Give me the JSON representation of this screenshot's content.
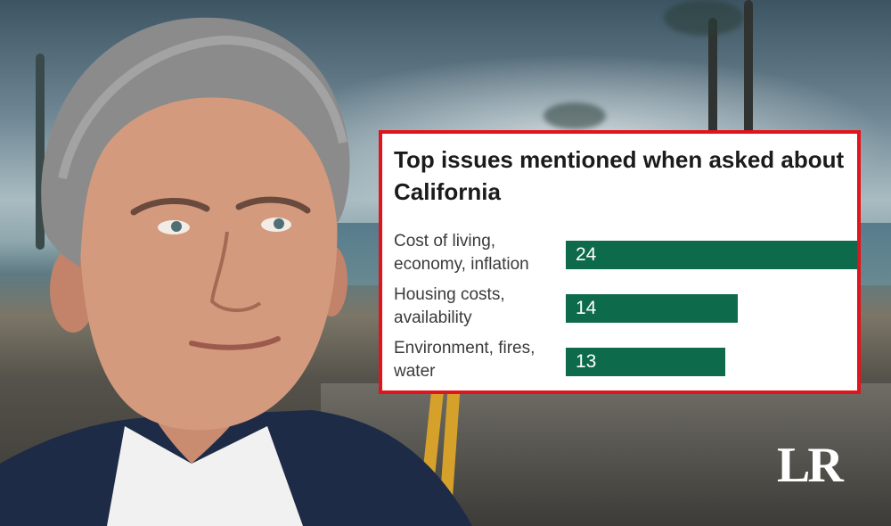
{
  "logo": "LR",
  "colors": {
    "frame": "#e1141b",
    "bar": "#0d6a4b",
    "panel": "#ffffff"
  },
  "chart_data": {
    "type": "bar",
    "orientation": "horizontal",
    "title": "Top issues mentioned when asked about California",
    "categories": [
      [
        "Cost of living,",
        "economy, inflation"
      ],
      [
        "Housing costs,",
        "availability"
      ],
      [
        "Environment, fires,",
        "water"
      ]
    ],
    "values": [
      24,
      14,
      13
    ],
    "data_labels": [
      "24",
      "14",
      "13"
    ],
    "xlim": [
      0,
      24
    ],
    "grid": false
  }
}
